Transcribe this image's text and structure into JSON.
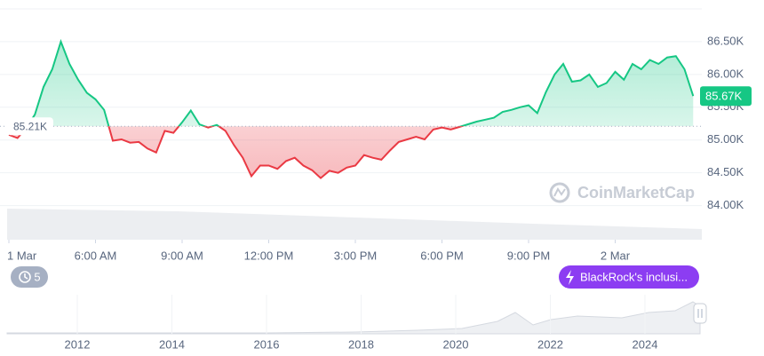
{
  "chart_data": {
    "type": "line",
    "x": [
      3,
      3.3,
      3.6,
      3.9,
      4.2,
      4.5,
      4.8,
      5.1,
      5.4,
      5.7,
      6,
      6.3,
      6.6,
      6.9,
      7.2,
      7.5,
      7.8,
      8.1,
      8.4,
      8.7,
      9,
      9.3,
      9.6,
      9.9,
      10.2,
      10.5,
      10.8,
      11.1,
      11.4,
      11.7,
      12,
      12.3,
      12.6,
      12.9,
      13.2,
      13.5,
      13.8,
      14.1,
      14.4,
      14.7,
      15,
      15.3,
      15.6,
      15.9,
      16.2,
      16.5,
      16.8,
      17.1,
      17.4,
      17.7,
      18,
      18.3,
      18.6,
      18.9,
      19.2,
      19.5,
      19.8,
      20.1,
      20.4,
      20.7,
      21,
      21.3,
      21.6,
      21.9,
      22.2,
      22.5,
      22.8,
      23.1,
      23.4,
      23.7,
      24,
      24.3,
      24.6,
      24.9,
      25.2,
      25.5,
      25.8,
      26.1,
      26.4,
      26.7
    ],
    "values": [
      85080,
      85030,
      85180,
      85390,
      85810,
      86080,
      86500,
      86160,
      85920,
      85720,
      85620,
      85460,
      84990,
      85010,
      84960,
      84970,
      84870,
      84810,
      85140,
      85110,
      85270,
      85450,
      85240,
      85190,
      85230,
      85140,
      84920,
      84730,
      84450,
      84610,
      84610,
      84560,
      84680,
      84730,
      84610,
      84540,
      84420,
      84530,
      84500,
      84580,
      84610,
      84770,
      84730,
      84700,
      84840,
      84970,
      85010,
      85050,
      85010,
      85160,
      85190,
      85160,
      85200,
      85240,
      85280,
      85310,
      85340,
      85430,
      85460,
      85500,
      85530,
      85410,
      85730,
      86000,
      86160,
      85890,
      85910,
      86000,
      85810,
      85870,
      86040,
      85920,
      86160,
      86080,
      86220,
      86160,
      86260,
      86280,
      86080,
      85670
    ],
    "up_color": "#16c784",
    "down_color": "#ea3943",
    "baseline": {
      "value": 85210,
      "label": "85.21K"
    },
    "current_price": {
      "value": 85670,
      "label": "85.67K"
    },
    "xlim": [
      3,
      27
    ],
    "xticks": [
      {
        "value": 3,
        "label": "1 Mar"
      },
      {
        "value": 6,
        "label": "6:00 AM"
      },
      {
        "value": 9,
        "label": "9:00 AM"
      },
      {
        "value": 12,
        "label": "12:00 PM"
      },
      {
        "value": 15,
        "label": "3:00 PM"
      },
      {
        "value": 18,
        "label": "6:00 PM"
      },
      {
        "value": 21,
        "label": "9:00 PM"
      },
      {
        "value": 24,
        "label": "2 Mar"
      }
    ],
    "ylim": [
      83480,
      87000
    ],
    "yticks": [
      {
        "value": 84000,
        "label": "84.00K"
      },
      {
        "value": 84500,
        "label": "84.50K"
      },
      {
        "value": 85000,
        "label": "85.00K"
      },
      {
        "value": 85500,
        "label": "85.50K"
      },
      {
        "value": 86000,
        "label": "86.00K"
      },
      {
        "value": 86500,
        "label": "86.50K"
      }
    ],
    "grid": true,
    "watermark": "CoinMarketCap",
    "events_count": 5,
    "event_label": "BlackRock's inclusi...",
    "navigator_labels": [
      "2012",
      "2014",
      "2016",
      "2018",
      "2020",
      "2022",
      "2024"
    ]
  }
}
